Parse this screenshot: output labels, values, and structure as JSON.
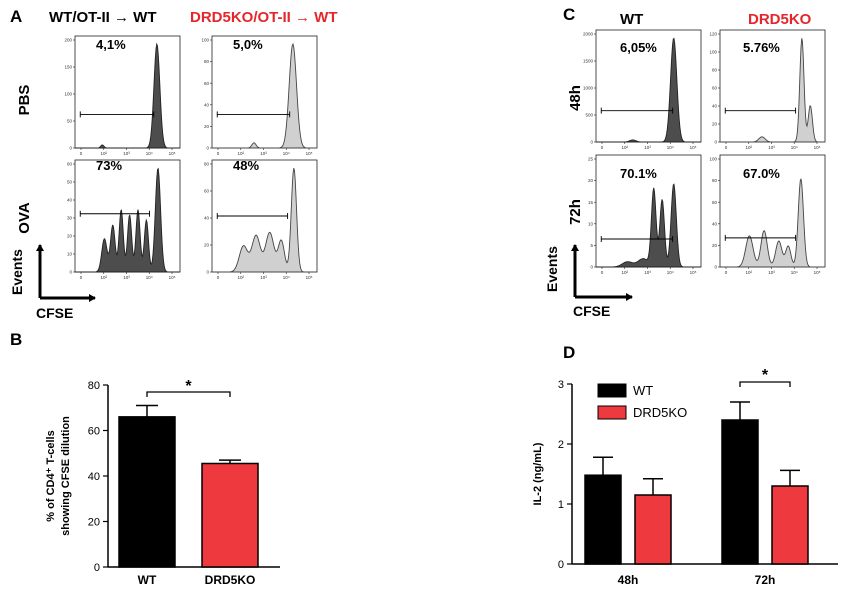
{
  "panel_labels": {
    "a": "A",
    "b": "B",
    "c": "C",
    "d": "D"
  },
  "colors": {
    "wt_dark": "#4d4d4d",
    "ko_light": "#d0d0d0",
    "wt_bar": "#000000",
    "ko_bar": "#ee3a3e",
    "red_text": "#e5262a"
  },
  "panel_a": {
    "col_wt": "WT/OT-II → WT",
    "col_ko": "DRD5KO/OT-II → WT",
    "row_pbs": "PBS",
    "row_ova": "OVA",
    "pct_pbs_wt": "4,1%",
    "pct_pbs_ko": "5,0%",
    "pct_ova_wt": "73%",
    "pct_ova_ko": "48%",
    "y_label": "Events",
    "x_label": "CFSE",
    "y_ticks_pbs_wt": [
      "0",
      "50",
      "100",
      "150",
      "200"
    ],
    "y_ticks_pbs_ko": [
      "0",
      "20",
      "40",
      "60",
      "80",
      "100"
    ],
    "y_ticks_ova_wt": [
      "0",
      "10",
      "20",
      "30",
      "40",
      "50",
      "60"
    ],
    "y_ticks_ova_ko": [
      "0",
      "20",
      "40",
      "60",
      "80"
    ],
    "x_ticks": [
      "0",
      "10²",
      "10³",
      "10⁴",
      "10⁵"
    ]
  },
  "panel_c": {
    "col_wt": "WT",
    "col_ko": "DRD5KO",
    "row_48": "48h",
    "row_72": "72h",
    "pct_48_wt": "6,05%",
    "pct_48_ko": "5.76%",
    "pct_72_wt": "70.1%",
    "pct_72_ko": "67.0%",
    "y_label": "Events",
    "x_label": "CFSE",
    "y_ticks_48_wt": [
      "0",
      "500",
      "1000",
      "1500",
      "2000"
    ],
    "y_ticks_48_ko": [
      "0",
      "20",
      "40",
      "60",
      "80",
      "100",
      "120"
    ],
    "y_ticks_72_wt": [
      "0",
      "5",
      "10",
      "15",
      "20",
      "25"
    ],
    "y_ticks_72_ko": [
      "0",
      "20",
      "40",
      "60",
      "80",
      "100"
    ],
    "x_ticks": [
      "0",
      "10²",
      "10³",
      "10⁴",
      "10⁵"
    ]
  },
  "chart_data": [
    {
      "type": "bar",
      "panel": "B",
      "categories": [
        "WT",
        "DRD5KO"
      ],
      "values": [
        66,
        45.5
      ],
      "errors": [
        5,
        1.5
      ],
      "ylabel_line1": "% of CD4⁺ T-cells",
      "ylabel_line2": "showing CFSE dilution",
      "ylim": [
        0,
        80
      ],
      "yticks": [
        0,
        20,
        40,
        60,
        80
      ],
      "significance": "*"
    },
    {
      "type": "bar",
      "panel": "D",
      "categories": [
        "48h",
        "72h"
      ],
      "series": [
        {
          "name": "WT",
          "values": [
            1.48,
            2.4
          ],
          "errors": [
            0.3,
            0.3
          ]
        },
        {
          "name": "DRD5KO",
          "values": [
            1.15,
            1.3
          ],
          "errors": [
            0.27,
            0.26
          ]
        }
      ],
      "ylabel": "IL-2 (ng/mL)",
      "ylim": [
        0,
        3
      ],
      "yticks": [
        0,
        1,
        2,
        3
      ],
      "significance": "*"
    }
  ]
}
